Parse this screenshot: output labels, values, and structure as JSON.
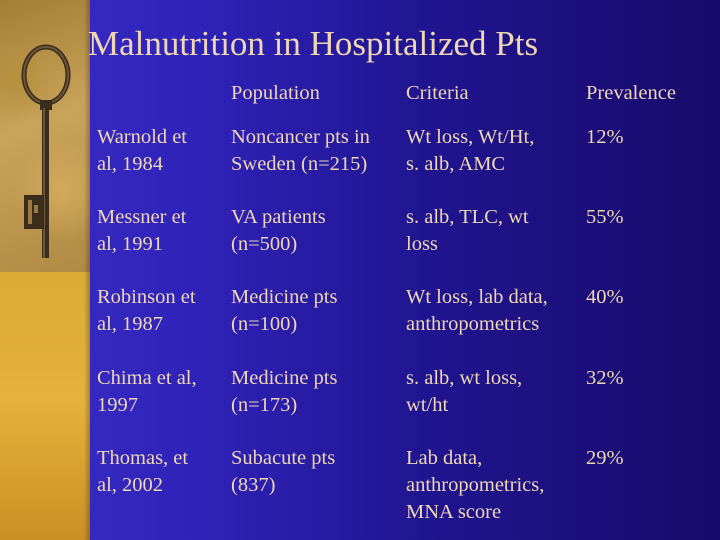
{
  "slide": {
    "title": "Malnutrition in Hospitalized Pts",
    "headers": {
      "population": "Population",
      "criteria": "Criteria",
      "prevalence": "Prevalence"
    },
    "rows": [
      {
        "study_line1": "Warnold et",
        "study_line2": "al, 1984",
        "population_line1": "Noncancer pts in",
        "population_line2": "Sweden (n=215)",
        "criteria_line1": "Wt loss, Wt/Ht,",
        "criteria_line2": "s. alb, AMC",
        "criteria_line3": "",
        "prevalence": "12%"
      },
      {
        "study_line1": "Messner et",
        "study_line2": "al, 1991",
        "population_line1": "VA patients",
        "population_line2": "(n=500)",
        "criteria_line1": "s. alb, TLC, wt",
        "criteria_line2": "loss",
        "criteria_line3": "",
        "prevalence": "55%"
      },
      {
        "study_line1": "Robinson et",
        "study_line2": "al, 1987",
        "population_line1": "Medicine pts",
        "population_line2": "(n=100)",
        "criteria_line1": "Wt loss, lab data,",
        "criteria_line2": "anthropometrics",
        "criteria_line3": "",
        "prevalence": "40%"
      },
      {
        "study_line1": "Chima et al,",
        "study_line2": "1997",
        "population_line1": "Medicine pts",
        "population_line2": "(n=173)",
        "criteria_line1": "s. alb, wt loss,",
        "criteria_line2": "wt/ht",
        "criteria_line3": "",
        "prevalence": "32%"
      },
      {
        "study_line1": "Thomas, et",
        "study_line2": "al, 2002",
        "population_line1": "Subacute pts",
        "population_line2": "(837)",
        "criteria_line1": "Lab data,",
        "criteria_line2": "anthropometrics,",
        "criteria_line3": "MNA score",
        "prevalence": "29%"
      }
    ]
  },
  "colors": {
    "text": "#f0d7b4",
    "background_left": "#3a2ec8",
    "background_right": "#180a6a",
    "strip": "#d9aa34"
  },
  "icons": [
    "antique-key-icon"
  ]
}
